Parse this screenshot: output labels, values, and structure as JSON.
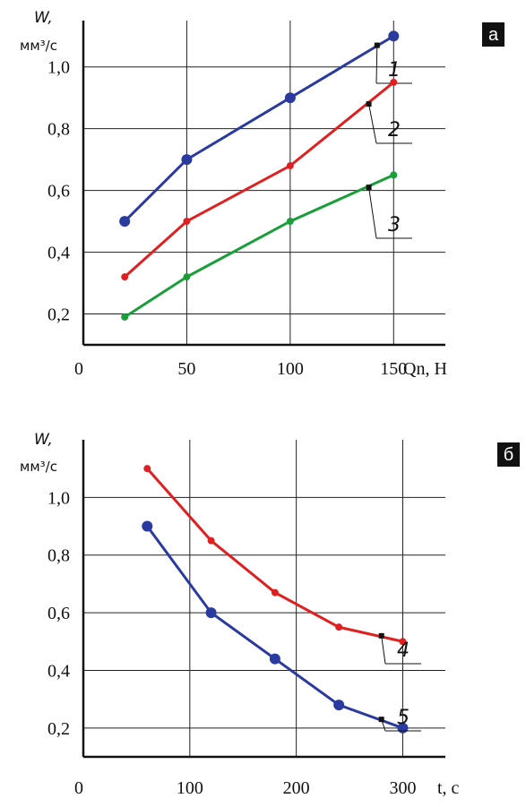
{
  "chart_data": [
    {
      "type": "line",
      "badge": "а",
      "y_label": "W,",
      "y_unit": "мм³/с",
      "x_label": "Qn, Н",
      "xlim": [
        0,
        175
      ],
      "ylim": [
        0.1,
        1.15
      ],
      "x_ticks": [
        "0",
        "50",
        "100",
        "150"
      ],
      "y_ticks": [
        "0,2",
        "0,4",
        "0,6",
        "0,8",
        "1,0"
      ],
      "grid": true,
      "series": [
        {
          "name": "1",
          "color": "#2a3a9e",
          "x": [
            20,
            50,
            100,
            150
          ],
          "y": [
            0.5,
            0.7,
            0.9,
            1.1
          ],
          "callout_x": 142,
          "callout_y": 1.07,
          "marker": "large"
        },
        {
          "name": "2",
          "color": "#e02020",
          "x": [
            20,
            50,
            100,
            150
          ],
          "y": [
            0.32,
            0.5,
            0.68,
            0.95
          ],
          "callout_x": 138,
          "callout_y": 0.88,
          "marker": "small"
        },
        {
          "name": "3",
          "color": "#1a9e3a",
          "x": [
            20,
            50,
            100,
            150
          ],
          "y": [
            0.19,
            0.32,
            0.5,
            0.65
          ],
          "callout_x": 138,
          "callout_y": 0.61,
          "marker": "small"
        }
      ]
    },
    {
      "type": "line",
      "badge": "б",
      "y_label": "W,",
      "y_unit": "мм³/с",
      "x_label": "t, с",
      "xlim": [
        0,
        340
      ],
      "ylim": [
        0.1,
        1.2
      ],
      "x_ticks": [
        "0",
        "100",
        "200",
        "300"
      ],
      "y_ticks": [
        "0,2",
        "0,4",
        "0,6",
        "0,8",
        "1,0"
      ],
      "grid": true,
      "series": [
        {
          "name": "4",
          "color": "#e02020",
          "x": [
            60,
            120,
            180,
            240,
            300
          ],
          "y": [
            1.1,
            0.85,
            0.67,
            0.55,
            0.5
          ],
          "callout_x": 280,
          "callout_y": 0.52,
          "marker": "small"
        },
        {
          "name": "5",
          "color": "#2a3a9e",
          "x": [
            60,
            120,
            180,
            240,
            300
          ],
          "y": [
            0.9,
            0.6,
            0.44,
            0.28,
            0.2
          ],
          "callout_x": 280,
          "callout_y": 0.23,
          "marker": "large"
        }
      ]
    }
  ]
}
